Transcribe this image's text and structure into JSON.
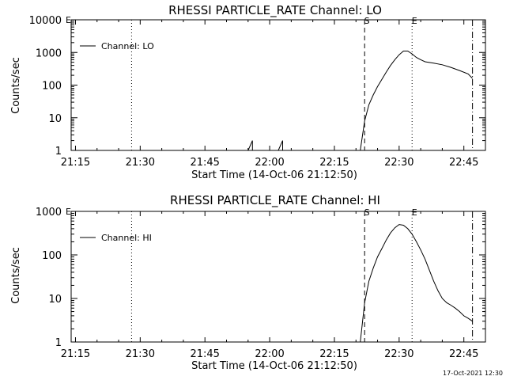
{
  "timestamp": "17-Oct-2021 12:30",
  "chart_data": [
    {
      "type": "line",
      "title": "RHESSI PARTICLE_RATE Channel: LO",
      "xlabel": "Start Time (14-Oct-06 21:12:50)",
      "ylabel": "Counts/sec",
      "scale_y": "log",
      "xlim_min": [
        14,
        50
      ],
      "ylim": [
        1,
        10000
      ],
      "xticks": [
        "21:15",
        "21:30",
        "21:45",
        "22:00",
        "22:15",
        "22:30",
        "22:45"
      ],
      "yticks": [
        "1",
        "10",
        "100",
        "1000",
        "10000"
      ],
      "vlines": [
        {
          "x": "21:28",
          "style": "dotted",
          "label": ""
        },
        {
          "x": "22:22",
          "style": "dashed",
          "label": "S"
        },
        {
          "x": "22:33",
          "style": "dotted",
          "label": "E"
        },
        {
          "x": "22:47",
          "style": "dashdot",
          "label": ""
        }
      ],
      "corner_mark": "E",
      "legend": "top-left",
      "series": [
        {
          "name": "Channel: LO",
          "x": [
            "21:55",
            "21:56",
            "21:56",
            "21:57",
            "22:02",
            "22:03",
            "22:03",
            "22:04",
            "22:21",
            "22:22",
            "22:23",
            "22:24",
            "22:25",
            "22:26",
            "22:27",
            "22:28",
            "22:29",
            "22:30",
            "22:31",
            "22:32",
            "22:33",
            "22:34",
            "22:35",
            "22:36",
            "22:38",
            "22:40",
            "22:42",
            "22:44",
            "22:46",
            "22:47"
          ],
          "y": [
            1,
            2,
            1,
            1,
            1,
            2,
            1,
            1,
            1,
            8,
            25,
            50,
            90,
            150,
            250,
            400,
            600,
            850,
            1100,
            1100,
            900,
            700,
            600,
            520,
            470,
            420,
            350,
            280,
            220,
            160
          ]
        }
      ]
    },
    {
      "type": "line",
      "title": "RHESSI PARTICLE_RATE Channel: HI",
      "xlabel": "Start Time (14-Oct-06 21:12:50)",
      "ylabel": "Counts/sec",
      "scale_y": "log",
      "xlim_min": [
        14,
        50
      ],
      "ylim": [
        1,
        1000
      ],
      "xticks": [
        "21:15",
        "21:30",
        "21:45",
        "22:00",
        "22:15",
        "22:30",
        "22:45"
      ],
      "yticks": [
        "1",
        "10",
        "100",
        "1000"
      ],
      "vlines": [
        {
          "x": "21:28",
          "style": "dotted",
          "label": ""
        },
        {
          "x": "22:22",
          "style": "dashed",
          "label": "S"
        },
        {
          "x": "22:33",
          "style": "dotted",
          "label": "E"
        },
        {
          "x": "22:47",
          "style": "dashdot",
          "label": ""
        }
      ],
      "corner_mark": "E",
      "legend": "top-left",
      "series": [
        {
          "name": "Channel: HI",
          "x": [
            "22:21",
            "22:22",
            "22:23",
            "22:24",
            "22:25",
            "22:26",
            "22:27",
            "22:28",
            "22:29",
            "22:30",
            "22:31",
            "22:32",
            "22:33",
            "22:34",
            "22:35",
            "22:36",
            "22:37",
            "22:38",
            "22:39",
            "22:40",
            "22:41",
            "22:42",
            "22:43",
            "22:44",
            "22:45",
            "22:46",
            "22:47"
          ],
          "y": [
            1,
            8,
            25,
            50,
            90,
            140,
            220,
            320,
            420,
            500,
            480,
            400,
            300,
            200,
            130,
            80,
            45,
            25,
            15,
            10,
            8,
            7,
            6,
            5,
            4,
            3.5,
            3
          ]
        }
      ]
    }
  ]
}
